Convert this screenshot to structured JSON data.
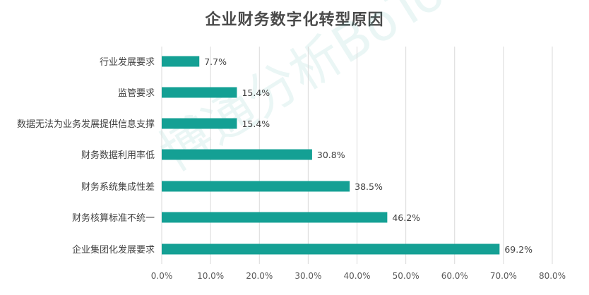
{
  "chart_data": {
    "type": "bar",
    "orientation": "horizontal",
    "title": "企业财务数字化转型原因",
    "categories": [
      "行业发展要求",
      "监管要求",
      "数据无法为业务发展提供信息支撑",
      "财务数据利用率低",
      "财务系统集成性差",
      "财务核算标准不统一",
      "企业集团化发展要求"
    ],
    "values": [
      7.7,
      15.4,
      15.4,
      30.8,
      38.5,
      46.2,
      69.2
    ],
    "value_labels": [
      "7.7%",
      "15.4%",
      "15.4%",
      "30.8%",
      "38.5%",
      "46.2%",
      "69.2%"
    ],
    "xlim": [
      0,
      80
    ],
    "xticks": [
      "0.0%",
      "10.0%",
      "20.0%",
      "30.0%",
      "40.0%",
      "50.0%",
      "60.0%",
      "70.0%",
      "80.0%"
    ],
    "grid": "vertical",
    "bar_color": "#14a094",
    "watermark": "博通分析BoTong"
  }
}
